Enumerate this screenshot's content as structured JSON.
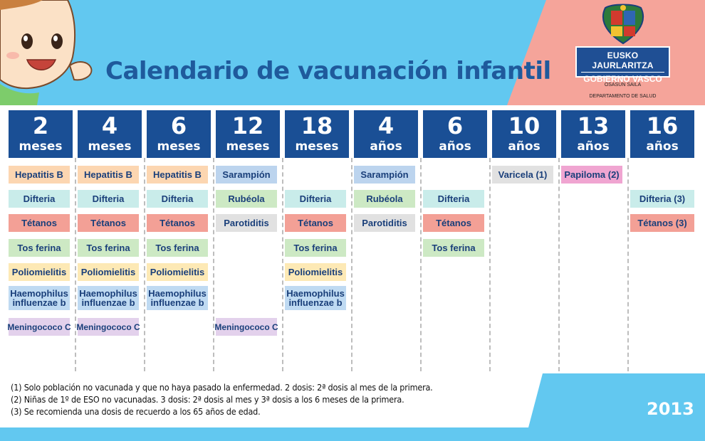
{
  "title": "Calendario de vacunación infantil",
  "logo": {
    "line1": "EUSKO JAURLARITZA",
    "line2": "GOBIERNO VASCO",
    "dept_eu": "OSASUN SAILA",
    "dept_es": "DEPARTAMENTO DE SALUD"
  },
  "columns": [
    {
      "num": "2",
      "unit": "meses"
    },
    {
      "num": "4",
      "unit": "meses"
    },
    {
      "num": "6",
      "unit": "meses"
    },
    {
      "num": "12",
      "unit": "meses"
    },
    {
      "num": "18",
      "unit": "meses"
    },
    {
      "num": "4",
      "unit": "años"
    },
    {
      "num": "6",
      "unit": "años"
    },
    {
      "num": "10",
      "unit": "años"
    },
    {
      "num": "13",
      "unit": "años"
    },
    {
      "num": "16",
      "unit": "años"
    }
  ],
  "vaccines": {
    "c0": [
      "Hepatitis B",
      "Difteria",
      "Tétanos",
      "Tos ferina",
      "Poliomielitis",
      "Haemophilus influenzae b",
      "Meningococo C"
    ],
    "c1": [
      "Hepatitis B",
      "Difteria",
      "Tétanos",
      "Tos ferina",
      "Poliomielitis",
      "Haemophilus influenzae b",
      "Meningococo C"
    ],
    "c2": [
      "Hepatitis B",
      "Difteria",
      "Tétanos",
      "Tos ferina",
      "Poliomielitis",
      "Haemophilus influenzae b"
    ],
    "c3": [
      "Sarampión",
      "Rubéola",
      "Parotiditis",
      "Meningococo C"
    ],
    "c4": [
      "Difteria",
      "Tétanos",
      "Tos ferina",
      "Poliomielitis",
      "Haemophilus influenzae b"
    ],
    "c5": [
      "Sarampión",
      "Rubéola",
      "Parotiditis"
    ],
    "c6": [
      "Difteria",
      "Tétanos",
      "Tos ferina"
    ],
    "c7": [
      "Varicela (1)"
    ],
    "c8": [
      "Papiloma (2)"
    ],
    "c9": [
      "Difteria (3)",
      "Tétanos (3)"
    ]
  },
  "notes": [
    "(1) Solo población no vacunada y que no haya pasado la enfermedad. 2 dosis: 2ª dosis al mes de la primera.",
    "(2) Niñas de 1º de ESO no vacunadas. 3 dosis: 2ª dosis al mes y 3ª dosis a los 6 meses de la primera.",
    "(3) Se recomienda una dosis de recuerdo a los 65 años de edad."
  ],
  "year": "2013",
  "colors": {
    "banner": "#62c8f0",
    "header": "#1a4f95",
    "accent_pink": "#f5a49a"
  }
}
